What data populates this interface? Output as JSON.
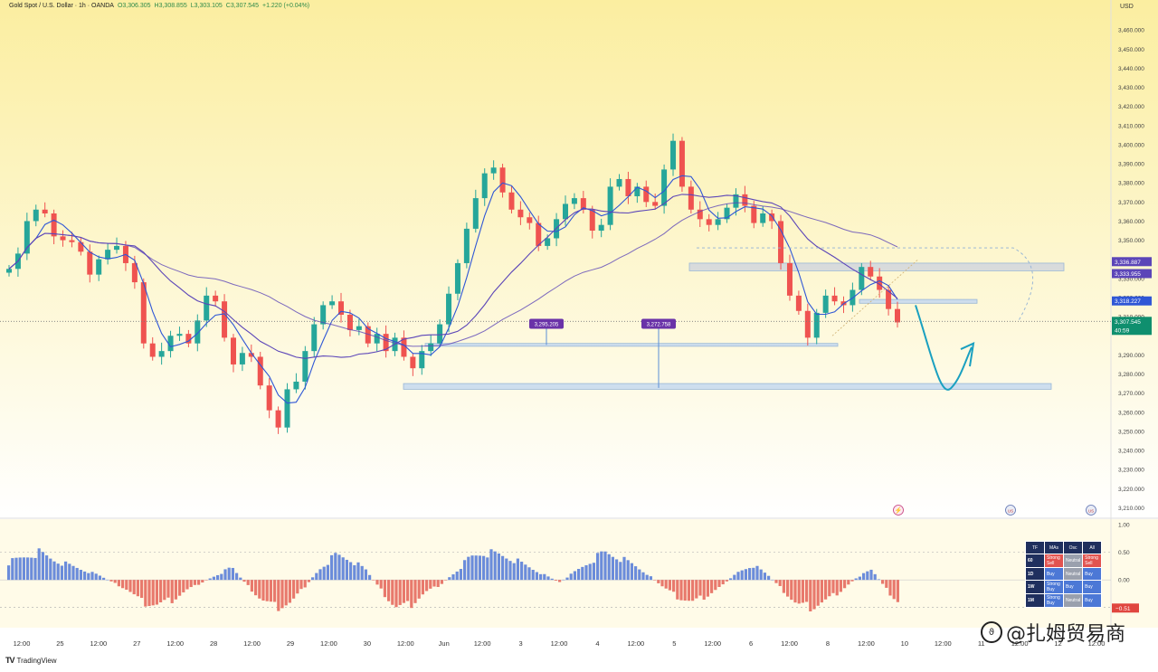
{
  "header": {
    "symbol": "Gold Spot / U.S. Dollar · 1h · OANDA",
    "open": "O3,306.305",
    "high": "H3,308.855",
    "low": "L3,303.105",
    "close": "C3,307.545",
    "change": "+1.220 (+0.04%)"
  },
  "footer": {
    "brand": "TradingView"
  },
  "watermark": {
    "text": "@扎姆贸易商"
  },
  "colors": {
    "background_top": "#fbeea0",
    "background_bottom": "#ffffff",
    "up": "#26a69a",
    "down": "#ef5350",
    "ma_fast": "#2f57d6",
    "ma_slow": "#5b45b8",
    "zone": "#b9cbe0",
    "projection": "#1aa0c0",
    "price_label": "#0f8f6e",
    "purple_label": "#6a32a8"
  },
  "chart_data": [
    {
      "type": "candlestick",
      "title": "Gold Spot / U.S. Dollar · 1h · OANDA",
      "currency": "USD",
      "ylim": [
        3205,
        3470
      ],
      "y_ticks": [
        "3,460.000",
        "3,450.000",
        "3,440.000",
        "3,430.000",
        "3,420.000",
        "3,410.000",
        "3,400.000",
        "3,390.000",
        "3,380.000",
        "3,370.000",
        "3,360.000",
        "3,350.000",
        "3,330.000",
        "3,320.000",
        "3,310.000",
        "3,290.000",
        "3,280.000",
        "3,270.000",
        "3,260.000",
        "3,250.000",
        "3,240.000",
        "3,230.000",
        "3,220.000",
        "3,210.000"
      ],
      "x_labels": [
        "12:00",
        "25",
        "12:00",
        "27",
        "12:00",
        "28",
        "12:00",
        "29",
        "12:00",
        "30",
        "12:00",
        "Jun",
        "12:00",
        "3",
        "12:00",
        "4",
        "12:00",
        "5",
        "12:00",
        "6",
        "12:00",
        "8",
        "12:00",
        "10",
        "12:00",
        "11",
        "12:00",
        "12",
        "12:00"
      ],
      "close_path": [
        3335,
        3343,
        3360,
        3366,
        3364,
        3352,
        3350,
        3349,
        3344,
        3332,
        3340,
        3345,
        3347,
        3338,
        3328,
        3296,
        3289,
        3292,
        3300,
        3301,
        3296,
        3308,
        3321,
        3318,
        3299,
        3285,
        3291,
        3289,
        3274,
        3261,
        3252,
        3272,
        3276,
        3292,
        3306,
        3316,
        3318,
        3311,
        3303,
        3305,
        3296,
        3301,
        3292,
        3299,
        3289,
        3283,
        3292,
        3296,
        3306,
        3322,
        3338,
        3356,
        3372,
        3385,
        3388,
        3375,
        3366,
        3362,
        3359,
        3347,
        3351,
        3361,
        3369,
        3372,
        3366,
        3355,
        3358,
        3378,
        3382,
        3373,
        3378,
        3370,
        3368,
        3387,
        3402,
        3378,
        3366,
        3361,
        3358,
        3361,
        3367,
        3374,
        3368,
        3359,
        3364,
        3360,
        3338,
        3321,
        3313,
        3299,
        3312,
        3321,
        3318,
        3316,
        3324,
        3336,
        3331,
        3324,
        3314,
        3307
      ],
      "annotations": [
        "3,295.205",
        "3,272.758"
      ],
      "price_labels": [
        {
          "text": "3,336.887",
          "value": 3336.887,
          "color": "#5b45b8"
        },
        {
          "text": "3,333.955",
          "value": 3333.955,
          "color": "#5b45b8"
        },
        {
          "text": "3,318.227",
          "value": 3318.227,
          "color": "#2f57d6"
        },
        {
          "text": "3,307.545",
          "value": 3307.545,
          "color": "#0f8f6e"
        }
      ],
      "countdown": "40:59",
      "zones": [
        {
          "low": 3334,
          "high": 3338
        },
        {
          "low": 3317,
          "high": 3319
        },
        {
          "low": 3294.5,
          "high": 3296
        },
        {
          "low": 3272,
          "high": 3275
        }
      ],
      "events": [
        "⚡",
        "US",
        "US"
      ]
    },
    {
      "type": "bar",
      "title": "",
      "ylim": [
        -0.8,
        1.1
      ],
      "y_ticks": [
        "1.00",
        "0.50",
        "0.00",
        "-0.50"
      ],
      "last_value_label": "−0.51",
      "values_profile": [
        0.35,
        0.45,
        0.55,
        0.4,
        0.3,
        0.2,
        0.1,
        -0.05,
        -0.2,
        -0.45,
        -0.5,
        -0.4,
        -0.2,
        -0.05,
        0.1,
        0.25,
        -0.1,
        -0.4,
        -0.55,
        -0.45,
        -0.1,
        0.25,
        0.5,
        0.4,
        0.2,
        -0.2,
        -0.55,
        -0.5,
        -0.25,
        -0.1,
        0.15,
        0.45,
        0.55,
        0.5,
        0.4,
        0.25,
        0.1,
        -0.05,
        0.15,
        0.35,
        0.55,
        0.45,
        0.3,
        0.1,
        -0.15,
        -0.35,
        -0.45,
        -0.3,
        -0.1,
        0.15,
        0.3,
        0.1,
        -0.2,
        -0.5,
        -0.55,
        -0.4,
        -0.2,
        0.05,
        0.2,
        -0.2,
        -0.5
      ]
    }
  ],
  "tech_rating": {
    "headers": [
      "TF",
      "MAs",
      "Osc",
      "All"
    ],
    "rows": [
      {
        "tf": "60",
        "mas": "Strong Sell",
        "osc": "Neutral",
        "all": "Strong Sell"
      },
      {
        "tf": "1D",
        "mas": "Buy",
        "osc": "Neutral",
        "all": "Buy"
      },
      {
        "tf": "1W",
        "mas": "Strong Buy",
        "osc": "Buy",
        "all": "Buy"
      },
      {
        "tf": "1M",
        "mas": "Strong Buy",
        "osc": "Neutral",
        "all": "Buy"
      }
    ]
  }
}
